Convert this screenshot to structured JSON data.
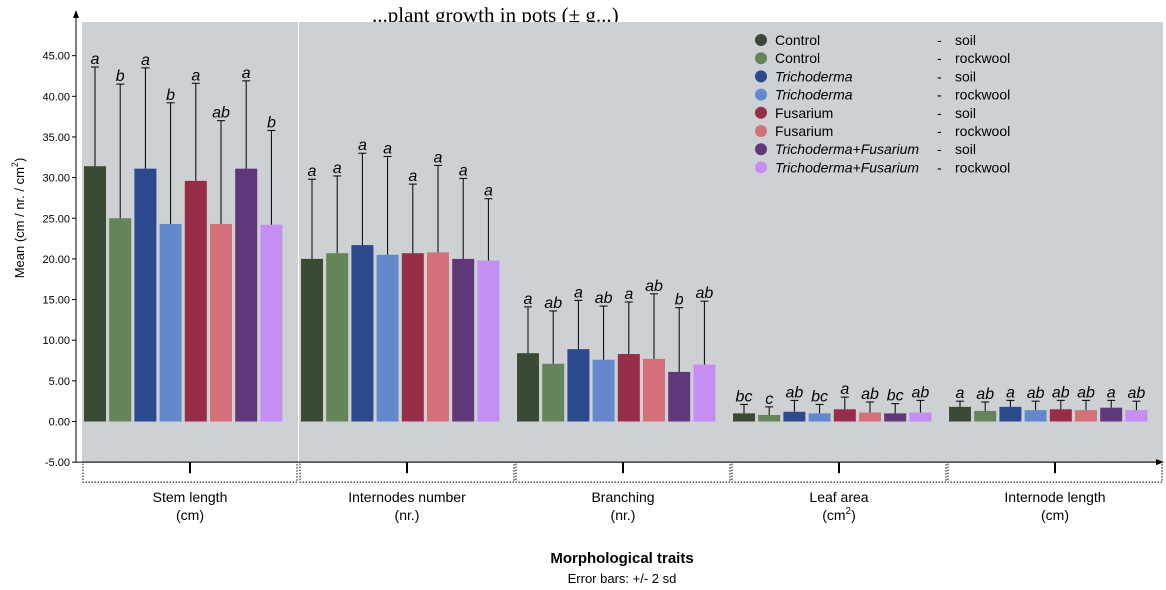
{
  "chart_data": {
    "type": "bar",
    "title": "...plant growth in pots (± g...)",
    "ylabel": "Mean (cm / nr. / cm",
    "ylabel_sup": "2",
    "ylabel_close": ")",
    "xlabel": "Morphological traits",
    "note": "Error bars: +/- 2 sd",
    "ylim": [
      -5,
      48
    ],
    "yticks": [
      "-5.00",
      "0.00",
      "5.00",
      "10.00",
      "15.00",
      "20.00",
      "25.00",
      "30.00",
      "35.00",
      "40.00",
      "45.00"
    ],
    "categories": [
      {
        "line1": "Stem length",
        "line2": "(cm)",
        "sup": ""
      },
      {
        "line1": "Internodes number",
        "line2": "(nr.)",
        "sup": ""
      },
      {
        "line1": "Branching",
        "line2": "(nr.)",
        "sup": ""
      },
      {
        "line1": "Leaf area",
        "line2": "(cm",
        "sup": "2",
        "close": ")"
      },
      {
        "line1": "Internode length",
        "line2": "(cm)",
        "sup": ""
      }
    ],
    "series": [
      {
        "name": "Control",
        "italic": false,
        "substrate": "soil",
        "color": "#3a4a35",
        "values": [
          31.4,
          20.0,
          8.4,
          1.0,
          1.8
        ],
        "err_top": [
          43.6,
          29.8,
          14.1,
          2.1,
          2.5
        ],
        "letters": [
          "a",
          "a",
          "a",
          "bc",
          "a"
        ]
      },
      {
        "name": "Control",
        "italic": false,
        "substrate": "rockwool",
        "color": "#64855a",
        "values": [
          25.0,
          20.7,
          7.1,
          0.8,
          1.3
        ],
        "err_top": [
          41.5,
          30.2,
          13.6,
          1.8,
          2.4
        ],
        "letters": [
          "b",
          "a",
          "ab",
          "c",
          "ab"
        ]
      },
      {
        "name": "Trichoderma",
        "italic": true,
        "substrate": "soil",
        "color": "#2b4a8e",
        "values": [
          31.1,
          21.7,
          8.9,
          1.2,
          1.8
        ],
        "err_top": [
          43.5,
          33.0,
          14.9,
          2.6,
          2.6
        ],
        "letters": [
          "a",
          "a",
          "a",
          "ab",
          "a"
        ]
      },
      {
        "name": "Trichoderma",
        "italic": true,
        "substrate": "rockwool",
        "color": "#6388cc",
        "values": [
          24.3,
          20.5,
          7.6,
          1.0,
          1.4
        ],
        "err_top": [
          39.2,
          32.6,
          14.2,
          2.1,
          2.5
        ],
        "letters": [
          "b",
          "a",
          "ab",
          "bc",
          "ab"
        ]
      },
      {
        "name": "Fusarium",
        "italic": false,
        "substrate": "soil",
        "color": "#972d47",
        "values": [
          29.6,
          20.7,
          8.3,
          1.5,
          1.5
        ],
        "err_top": [
          41.6,
          29.2,
          14.7,
          3.0,
          2.6
        ],
        "letters": [
          "a",
          "a",
          "a",
          "a",
          "ab"
        ]
      },
      {
        "name": "Fusarium",
        "italic": false,
        "substrate": "rockwool",
        "color": "#d4707a",
        "values": [
          24.3,
          20.8,
          7.7,
          1.1,
          1.4
        ],
        "err_top": [
          37.0,
          31.5,
          15.7,
          2.4,
          2.6
        ],
        "letters": [
          "ab",
          "a",
          "ab",
          "ab",
          "ab"
        ]
      },
      {
        "name": "Trichoderma+Fusarium",
        "italic": true,
        "substrate": "soil",
        "color": "#5e3878",
        "values": [
          31.1,
          20.0,
          6.1,
          1.0,
          1.7
        ],
        "err_top": [
          41.9,
          29.9,
          14.0,
          2.2,
          2.6
        ],
        "letters": [
          "a",
          "a",
          "b",
          "bc",
          "a"
        ]
      },
      {
        "name": "Trichoderma+Fusarium",
        "italic": true,
        "substrate": "rockwool",
        "color": "#c48ef2",
        "values": [
          24.2,
          19.8,
          7.0,
          1.1,
          1.4
        ],
        "err_top": [
          35.8,
          27.4,
          14.8,
          2.6,
          2.5
        ],
        "letters": [
          "b",
          "a",
          "ab",
          "ab",
          "ab"
        ]
      }
    ],
    "legend_position": "top-right",
    "grid": false,
    "legend_separator": "-",
    "colors": {
      "panel_background": "#cdd1d4",
      "axis": "#000000"
    }
  }
}
